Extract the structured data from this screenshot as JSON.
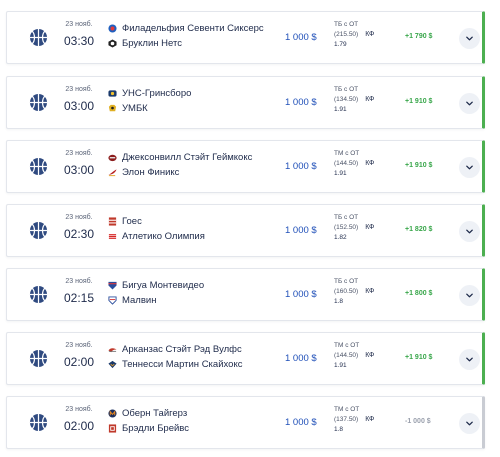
{
  "bets": [
    {
      "date": "23 нояб.",
      "time": "03:30",
      "team1": "Филадельфия Севенти Сиксерс",
      "team2": "Бруклин Нетс",
      "stake": "1 000 $",
      "bet_line": "ТБ с ОТ",
      "bet_total": "(215.50)",
      "kf_label": "КФ",
      "coef": "1.79",
      "result": "+1 790 $",
      "outcome": "won"
    },
    {
      "date": "23 нояб.",
      "time": "03:00",
      "team1": "УНС-Гринсборо",
      "team2": "УМБК",
      "stake": "1 000 $",
      "bet_line": "ТБ с ОТ",
      "bet_total": "(134.50)",
      "kf_label": "КФ",
      "coef": "1.91",
      "result": "+1 910 $",
      "outcome": "won"
    },
    {
      "date": "23 нояб.",
      "time": "03:00",
      "team1": "Джексонвилл Стэйт Геймкокс",
      "team2": "Элон Финикс",
      "stake": "1 000 $",
      "bet_line": "ТМ с ОТ",
      "bet_total": "(144.50)",
      "kf_label": "КФ",
      "coef": "1.91",
      "result": "+1 910 $",
      "outcome": "won"
    },
    {
      "date": "23 нояб.",
      "time": "02:30",
      "team1": "Гоес",
      "team2": "Атлетико Олимпия",
      "stake": "1 000 $",
      "bet_line": "ТБ с ОТ",
      "bet_total": "(152.50)",
      "kf_label": "КФ",
      "coef": "1.82",
      "result": "+1 820 $",
      "outcome": "won"
    },
    {
      "date": "23 нояб.",
      "time": "02:15",
      "team1": "Бигуа Монтевидео",
      "team2": "Малвин",
      "stake": "1 000 $",
      "bet_line": "ТБ с ОТ",
      "bet_total": "(160.50)",
      "kf_label": "КФ",
      "coef": "1.8",
      "result": "+1 800 $",
      "outcome": "won"
    },
    {
      "date": "23 нояб.",
      "time": "02:00",
      "team1": "Арканзас Стэйт Рэд Вулфс",
      "team2": "Теннесси Мартин Скайхокс",
      "stake": "1 000 $",
      "bet_line": "ТМ с ОТ",
      "bet_total": "(144.50)",
      "kf_label": "КФ",
      "coef": "1.91",
      "result": "+1 910 $",
      "outcome": "won"
    },
    {
      "date": "23 нояб.",
      "time": "02:00",
      "team1": "Оберн Тайгерз",
      "team2": "Брэдли Брейвс",
      "stake": "1 000 $",
      "bet_line": "ТМ с ОТ",
      "bet_total": "(137.50)",
      "kf_label": "КФ",
      "coef": "1.8",
      "result": "-1 000 $",
      "outcome": "lost"
    }
  ],
  "icons": {
    "sport": "basketball-icon",
    "expand": "chevron-down-icon"
  },
  "colors": {
    "accent_blue": "#1f4fb8",
    "won_green": "#4caf50",
    "lost_grey": "#9aa0ad"
  }
}
